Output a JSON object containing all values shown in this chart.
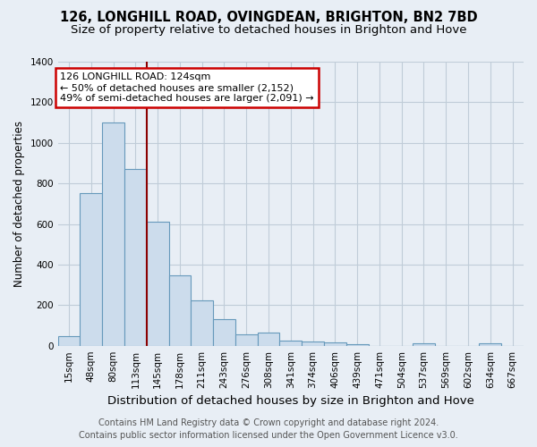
{
  "title": "126, LONGHILL ROAD, OVINGDEAN, BRIGHTON, BN2 7BD",
  "subtitle": "Size of property relative to detached houses in Brighton and Hove",
  "xlabel": "Distribution of detached houses by size in Brighton and Hove",
  "ylabel": "Number of detached properties",
  "footer1": "Contains HM Land Registry data © Crown copyright and database right 2024.",
  "footer2": "Contains public sector information licensed under the Open Government Licence v3.0.",
  "categories": [
    "15sqm",
    "48sqm",
    "80sqm",
    "113sqm",
    "145sqm",
    "178sqm",
    "211sqm",
    "243sqm",
    "276sqm",
    "308sqm",
    "341sqm",
    "374sqm",
    "406sqm",
    "439sqm",
    "471sqm",
    "504sqm",
    "537sqm",
    "569sqm",
    "602sqm",
    "634sqm",
    "667sqm"
  ],
  "values": [
    45,
    750,
    1100,
    870,
    610,
    345,
    225,
    130,
    55,
    65,
    25,
    20,
    15,
    8,
    0,
    0,
    10,
    0,
    0,
    10,
    0
  ],
  "bar_color": "#ccdcec",
  "bar_edge_color": "#6699bb",
  "vline_color": "#8B0000",
  "annotation_line1": "126 LONGHILL ROAD: 124sqm",
  "annotation_line2": "← 50% of detached houses are smaller (2,152)",
  "annotation_line3": "49% of semi-detached houses are larger (2,091) →",
  "annotation_box_facecolor": "white",
  "annotation_box_edgecolor": "#cc0000",
  "ylim": [
    0,
    1400
  ],
  "yticks": [
    0,
    200,
    400,
    600,
    800,
    1000,
    1200,
    1400
  ],
  "bg_color": "#e8eef5",
  "plot_bg_color": "#e8eef5",
  "grid_color": "#c0ccd8",
  "title_fontsize": 10.5,
  "subtitle_fontsize": 9.5,
  "xlabel_fontsize": 9.5,
  "ylabel_fontsize": 8.5,
  "tick_fontsize": 7.5,
  "footer_fontsize": 7.0,
  "annot_fontsize": 8.0
}
